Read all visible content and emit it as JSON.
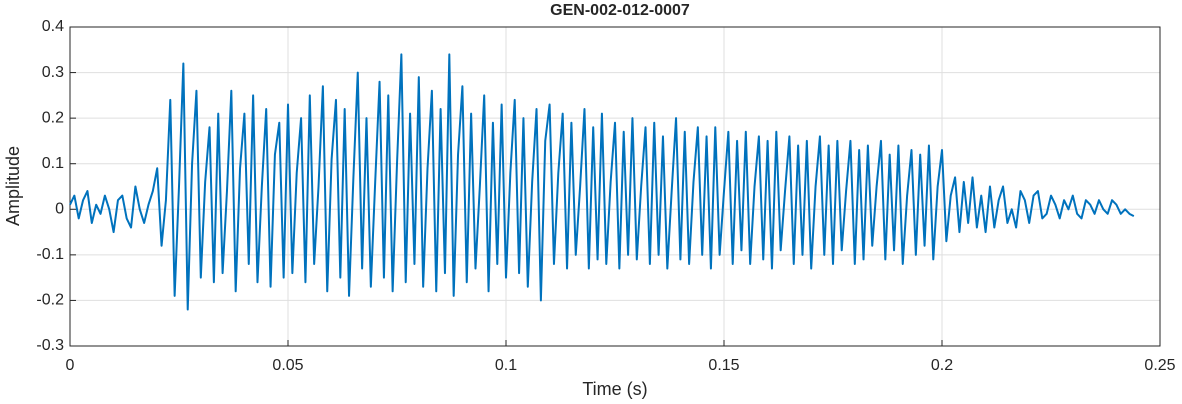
{
  "chart_data": {
    "type": "line",
    "title": "GEN-002-012-0007",
    "xlabel": "Time (s)",
    "ylabel": "Amplitude",
    "color": "#0072BD",
    "grid": true,
    "xlim": [
      0,
      0.25
    ],
    "xticks": [
      0,
      0.05,
      0.1,
      0.15,
      0.2,
      0.25
    ],
    "ylim": [
      -0.3,
      0.4
    ],
    "yticks": [
      -0.3,
      -0.2,
      -0.1,
      0,
      0.1,
      0.2,
      0.3,
      0.4
    ],
    "x": [
      0,
      0.001,
      0.002,
      0.003,
      0.004,
      0.005,
      0.006,
      0.007,
      0.008,
      0.009,
      0.01,
      0.011,
      0.012,
      0.013,
      0.014,
      0.015,
      0.016,
      0.017,
      0.018,
      0.019,
      0.02,
      0.021,
      0.022,
      0.023,
      0.024,
      0.025,
      0.026,
      0.027,
      0.028,
      0.029,
      0.03,
      0.031,
      0.032,
      0.033,
      0.034,
      0.035,
      0.036,
      0.037,
      0.038,
      0.039,
      0.04,
      0.041,
      0.042,
      0.043,
      0.044,
      0.045,
      0.046,
      0.047,
      0.048,
      0.049,
      0.05,
      0.051,
      0.052,
      0.053,
      0.054,
      0.055,
      0.056,
      0.057,
      0.058,
      0.059,
      0.06,
      0.061,
      0.062,
      0.063,
      0.064,
      0.065,
      0.066,
      0.067,
      0.068,
      0.069,
      0.07,
      0.071,
      0.072,
      0.073,
      0.074,
      0.075,
      0.076,
      0.077,
      0.078,
      0.079,
      0.08,
      0.081,
      0.082,
      0.083,
      0.084,
      0.085,
      0.086,
      0.087,
      0.088,
      0.089,
      0.09,
      0.091,
      0.092,
      0.093,
      0.094,
      0.095,
      0.096,
      0.097,
      0.098,
      0.099,
      0.1,
      0.101,
      0.102,
      0.103,
      0.104,
      0.105,
      0.106,
      0.107,
      0.108,
      0.109,
      0.11,
      0.111,
      0.112,
      0.113,
      0.114,
      0.115,
      0.116,
      0.117,
      0.118,
      0.119,
      0.12,
      0.121,
      0.122,
      0.123,
      0.124,
      0.125,
      0.126,
      0.127,
      0.128,
      0.129,
      0.13,
      0.131,
      0.132,
      0.133,
      0.134,
      0.135,
      0.136,
      0.137,
      0.138,
      0.139,
      0.14,
      0.141,
      0.142,
      0.143,
      0.144,
      0.145,
      0.146,
      0.147,
      0.148,
      0.149,
      0.15,
      0.151,
      0.152,
      0.153,
      0.154,
      0.155,
      0.156,
      0.157,
      0.158,
      0.159,
      0.16,
      0.161,
      0.162,
      0.163,
      0.164,
      0.165,
      0.166,
      0.167,
      0.168,
      0.169,
      0.17,
      0.171,
      0.172,
      0.173,
      0.174,
      0.175,
      0.176,
      0.177,
      0.178,
      0.179,
      0.18,
      0.181,
      0.182,
      0.183,
      0.184,
      0.185,
      0.186,
      0.187,
      0.188,
      0.189,
      0.19,
      0.191,
      0.192,
      0.193,
      0.194,
      0.195,
      0.196,
      0.197,
      0.198,
      0.199,
      0.2,
      0.201,
      0.202,
      0.203,
      0.204,
      0.205,
      0.206,
      0.207,
      0.208,
      0.209,
      0.21,
      0.211,
      0.212,
      0.213,
      0.214,
      0.215,
      0.216,
      0.217,
      0.218,
      0.219,
      0.22,
      0.221,
      0.222,
      0.223,
      0.224,
      0.225,
      0.226,
      0.227,
      0.228,
      0.229,
      0.23,
      0.231,
      0.232,
      0.233,
      0.234,
      0.235,
      0.236,
      0.237,
      0.238,
      0.239,
      0.24,
      0.241,
      0.242,
      0.243,
      0.244
    ],
    "values": [
      0.01,
      0.03,
      -0.02,
      0.02,
      0.04,
      -0.03,
      0.01,
      -0.01,
      0.03,
      0.0,
      -0.05,
      0.02,
      0.03,
      -0.02,
      -0.04,
      0.05,
      0.0,
      -0.03,
      0.01,
      0.04,
      0.09,
      -0.08,
      0.02,
      0.24,
      -0.19,
      0.05,
      0.32,
      -0.22,
      0.1,
      0.26,
      -0.15,
      0.06,
      0.18,
      -0.16,
      0.21,
      -0.14,
      0.04,
      0.26,
      -0.18,
      0.09,
      0.21,
      -0.12,
      0.25,
      -0.16,
      0.05,
      0.22,
      -0.17,
      0.12,
      0.19,
      -0.15,
      0.23,
      -0.14,
      0.08,
      0.2,
      -0.16,
      0.25,
      -0.12,
      0.05,
      0.27,
      -0.18,
      0.11,
      0.24,
      -0.15,
      0.22,
      -0.19,
      0.07,
      0.3,
      -0.13,
      0.2,
      -0.17,
      0.06,
      0.28,
      -0.15,
      0.25,
      -0.18,
      0.1,
      0.34,
      -0.16,
      0.21,
      -0.12,
      0.29,
      -0.17,
      0.09,
      0.26,
      -0.18,
      0.22,
      -0.14,
      0.34,
      -0.19,
      0.12,
      0.27,
      -0.16,
      0.21,
      -0.13,
      0.05,
      0.25,
      -0.18,
      0.19,
      -0.12,
      0.23,
      -0.15,
      0.08,
      0.24,
      -0.14,
      0.2,
      -0.17,
      0.06,
      0.22,
      -0.2,
      0.15,
      0.23,
      -0.12,
      0.08,
      0.21,
      -0.13,
      0.19,
      -0.1,
      0.05,
      0.22,
      -0.13,
      0.18,
      -0.11,
      0.21,
      -0.12,
      0.06,
      0.19,
      -0.13,
      0.17,
      -0.1,
      0.2,
      -0.11,
      0.05,
      0.18,
      -0.12,
      0.19,
      -0.1,
      0.16,
      -0.13,
      0.04,
      0.2,
      -0.11,
      0.17,
      -0.12,
      0.06,
      0.18,
      -0.1,
      0.16,
      -0.13,
      0.18,
      -0.1,
      0.04,
      0.17,
      -0.12,
      0.15,
      -0.09,
      0.17,
      -0.12,
      0.05,
      0.16,
      -0.11,
      0.15,
      -0.13,
      0.17,
      -0.09,
      0.04,
      0.16,
      -0.12,
      0.14,
      -0.1,
      0.15,
      -0.13,
      0.05,
      0.16,
      -0.1,
      0.14,
      -0.12,
      0.15,
      -0.09,
      0.04,
      0.15,
      -0.12,
      0.13,
      -0.11,
      0.14,
      -0.08,
      0.05,
      0.15,
      -0.11,
      0.12,
      -0.09,
      0.14,
      -0.12,
      0.03,
      0.13,
      -0.1,
      0.12,
      -0.08,
      0.14,
      -0.11,
      0.05,
      0.13,
      -0.07,
      0.03,
      0.07,
      -0.05,
      0.06,
      -0.03,
      0.07,
      -0.04,
      0.03,
      -0.05,
      0.05,
      -0.04,
      0.02,
      0.05,
      -0.03,
      0.0,
      -0.04,
      0.04,
      0.02,
      -0.03,
      0.03,
      0.04,
      -0.02,
      -0.01,
      0.03,
      0.01,
      -0.02,
      0.02,
      0.0,
      0.03,
      -0.01,
      -0.02,
      0.02,
      0.01,
      -0.01,
      0.02,
      0.0,
      -0.01,
      0.02,
      0.01,
      -0.01,
      0.0,
      -0.01,
      -0.015
    ]
  }
}
